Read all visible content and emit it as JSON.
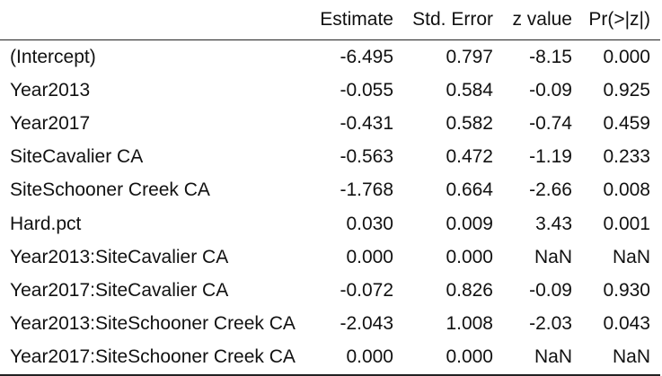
{
  "table": {
    "headers": [
      "",
      "Estimate",
      "Std. Error",
      "z value",
      "Pr(>|z|)"
    ],
    "rows": [
      {
        "term": "(Intercept)",
        "estimate": "-6.495",
        "std_error": "0.797",
        "z_value": "-8.15",
        "p_value": "0.000"
      },
      {
        "term": "Year2013",
        "estimate": "-0.055",
        "std_error": "0.584",
        "z_value": "-0.09",
        "p_value": "0.925"
      },
      {
        "term": "Year2017",
        "estimate": "-0.431",
        "std_error": "0.582",
        "z_value": "-0.74",
        "p_value": "0.459"
      },
      {
        "term": "SiteCavalier CA",
        "estimate": "-0.563",
        "std_error": "0.472",
        "z_value": "-1.19",
        "p_value": "0.233"
      },
      {
        "term": "SiteSchooner Creek CA",
        "estimate": "-1.768",
        "std_error": "0.664",
        "z_value": "-2.66",
        "p_value": "0.008"
      },
      {
        "term": "Hard.pct",
        "estimate": "0.030",
        "std_error": "0.009",
        "z_value": "3.43",
        "p_value": "0.001"
      },
      {
        "term": "Year2013:SiteCavalier CA",
        "estimate": "0.000",
        "std_error": "0.000",
        "z_value": "NaN",
        "p_value": "NaN"
      },
      {
        "term": "Year2017:SiteCavalier CA",
        "estimate": "-0.072",
        "std_error": "0.826",
        "z_value": "-0.09",
        "p_value": "0.930"
      },
      {
        "term": "Year2013:SiteSchooner Creek CA",
        "estimate": "-2.043",
        "std_error": "1.008",
        "z_value": "-2.03",
        "p_value": "0.043"
      },
      {
        "term": "Year2017:SiteSchooner Creek CA",
        "estimate": "0.000",
        "std_error": "0.000",
        "z_value": "NaN",
        "p_value": "NaN"
      }
    ]
  }
}
